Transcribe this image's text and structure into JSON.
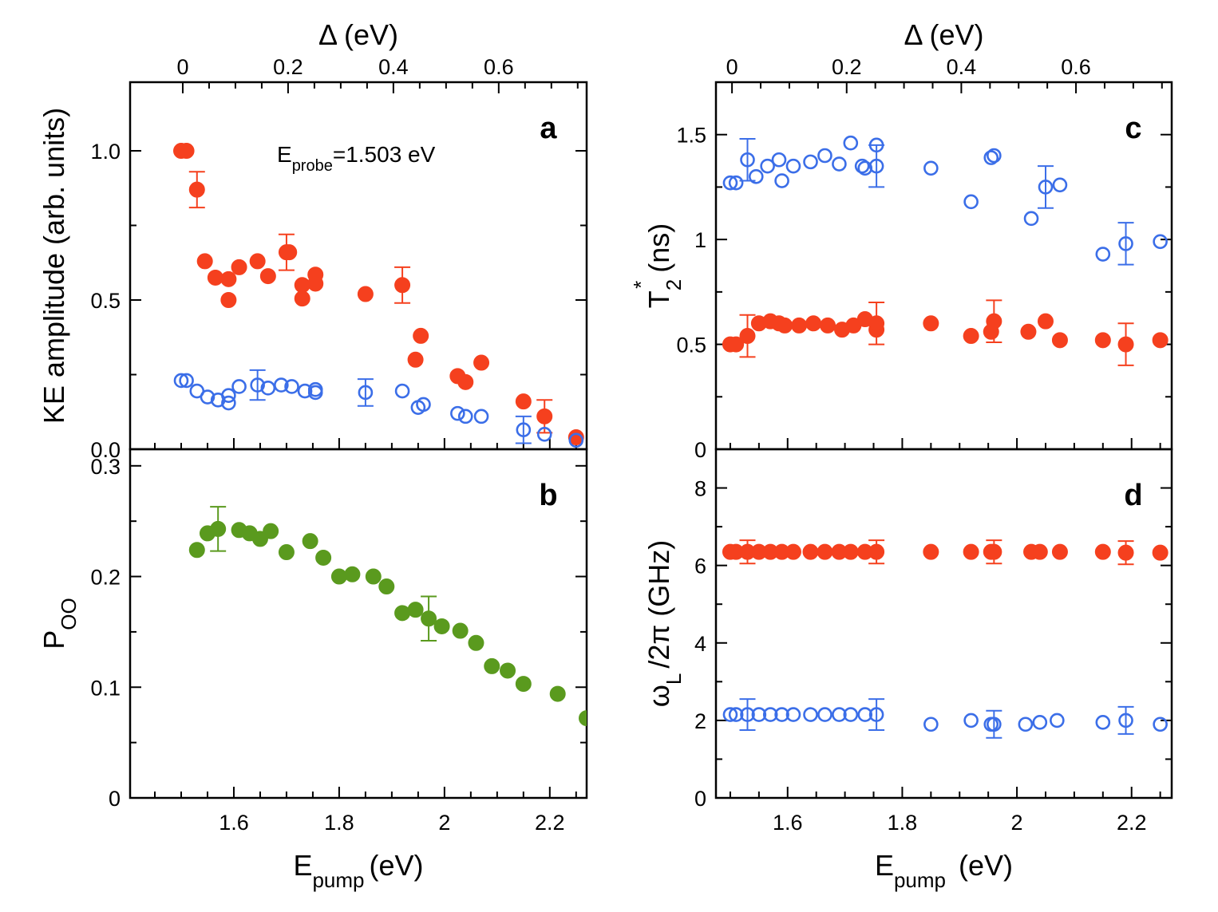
{
  "chart_data": [
    {
      "type": "scatter",
      "panel": "a",
      "title": "",
      "annotation": {
        "base": "E",
        "sub": "probe",
        "rest": "=1.503 eV"
      },
      "ylabel": "KE amplitude (arb. units)",
      "xlabel": "",
      "top_axis": {
        "symbol": "Δ",
        "unit": "(eV)",
        "ticks": [
          0,
          0.2,
          0.4,
          0.6
        ],
        "tick_labels": [
          "0",
          "0.2",
          "0.4",
          "0.6"
        ]
      },
      "xlim": [
        1.403,
        2.27
      ],
      "ylim": [
        0,
        1.23
      ],
      "yticks": [
        0,
        0.5,
        1.0
      ],
      "ytick_labels": [
        "0.0",
        "0.5",
        "1.0"
      ],
      "series": [
        {
          "name": "filled-red",
          "color": "#f5401e",
          "marker": "filled",
          "x": [
            1.5,
            1.51,
            1.53,
            1.545,
            1.565,
            1.59,
            1.59,
            1.61,
            1.645,
            1.665,
            1.7,
            1.705,
            1.73,
            1.73,
            1.755,
            1.755,
            1.85,
            1.92,
            1.945,
            1.955,
            2.025,
            2.04,
            2.07,
            2.15,
            2.19,
            2.25
          ],
          "y": [
            1.0,
            1.0,
            0.87,
            0.63,
            0.575,
            0.57,
            0.5,
            0.61,
            0.63,
            0.58,
            0.66,
            0.66,
            0.55,
            0.505,
            0.585,
            0.555,
            0.52,
            0.55,
            0.3,
            0.38,
            0.245,
            0.225,
            0.29,
            0.16,
            0.11,
            0.04
          ],
          "err": [
            0,
            0,
            0.06,
            0,
            0,
            0,
            0,
            0,
            0,
            0,
            0.06,
            0,
            0,
            0,
            0,
            0,
            0,
            0.06,
            0,
            0,
            0,
            0,
            0,
            0,
            0.055,
            0
          ]
        },
        {
          "name": "open-blue",
          "color": "#3b6ee8",
          "marker": "open",
          "x": [
            1.5,
            1.51,
            1.53,
            1.55,
            1.57,
            1.59,
            1.59,
            1.61,
            1.645,
            1.665,
            1.69,
            1.71,
            1.735,
            1.755,
            1.755,
            1.85,
            1.92,
            1.95,
            1.96,
            2.025,
            2.04,
            2.07,
            2.15,
            2.19,
            2.25
          ],
          "y": [
            0.23,
            0.23,
            0.195,
            0.175,
            0.165,
            0.18,
            0.155,
            0.21,
            0.215,
            0.205,
            0.215,
            0.21,
            0.195,
            0.2,
            0.19,
            0.19,
            0.195,
            0.14,
            0.15,
            0.12,
            0.11,
            0.11,
            0.065,
            0.05,
            0.03
          ],
          "err": [
            0,
            0,
            0,
            0,
            0,
            0,
            0,
            0,
            0.05,
            0,
            0,
            0,
            0,
            0,
            0,
            0.045,
            0,
            0,
            0,
            0,
            0,
            0,
            0.045,
            0,
            0
          ]
        }
      ]
    },
    {
      "type": "scatter",
      "panel": "b",
      "title": "",
      "ylabel": {
        "base": "P",
        "sub": "OO"
      },
      "xlabel": {
        "base": "E",
        "sub": "pump",
        "rest": "(eV)"
      },
      "xlim": [
        1.403,
        2.27
      ],
      "xticks": [
        1.6,
        1.8,
        2.0,
        2.2
      ],
      "xtick_labels": [
        "1.6",
        "1.8",
        "2",
        "2.2"
      ],
      "ylim": [
        0,
        0.315
      ],
      "yticks": [
        0,
        0.1,
        0.2,
        0.3
      ],
      "ytick_labels": [
        "0",
        "0.1",
        "0.2",
        "0.3"
      ],
      "series": [
        {
          "name": "filled-green",
          "color": "#5a9a1e",
          "marker": "filled",
          "x": [
            1.53,
            1.55,
            1.57,
            1.61,
            1.63,
            1.65,
            1.67,
            1.7,
            1.745,
            1.77,
            1.8,
            1.825,
            1.865,
            1.89,
            1.92,
            1.945,
            1.97,
            1.995,
            2.03,
            2.06,
            2.09,
            2.12,
            2.15,
            2.215,
            2.27
          ],
          "y": [
            0.224,
            0.239,
            0.243,
            0.242,
            0.239,
            0.234,
            0.241,
            0.222,
            0.232,
            0.217,
            0.2,
            0.202,
            0.2,
            0.191,
            0.167,
            0.17,
            0.162,
            0.155,
            0.151,
            0.14,
            0.119,
            0.115,
            0.103,
            0.094,
            0.072
          ],
          "err": [
            0,
            0,
            0.02,
            0,
            0,
            0,
            0,
            0,
            0,
            0,
            0,
            0,
            0,
            0,
            0,
            0,
            0.02,
            0,
            0,
            0,
            0,
            0,
            0,
            0,
            0
          ]
        }
      ]
    },
    {
      "type": "scatter",
      "panel": "c",
      "title": "",
      "ylabel": {
        "base": "T",
        "sub": "2",
        "sup": "*",
        "rest": " (ns)"
      },
      "xlabel": "",
      "top_axis": {
        "symbol": "Δ",
        "unit": "(eV)",
        "ticks": [
          0,
          0.2,
          0.4,
          0.6
        ],
        "tick_labels": [
          "0",
          "0.2",
          "0.4",
          "0.6"
        ]
      },
      "xlim": [
        1.475,
        2.27
      ],
      "ylim": [
        0,
        1.75
      ],
      "yticks": [
        0,
        0.5,
        1.0,
        1.5
      ],
      "ytick_labels": [
        "0",
        "0.5",
        "1",
        "1.5"
      ],
      "series": [
        {
          "name": "open-blue",
          "color": "#3b6ee8",
          "marker": "open",
          "x": [
            1.5,
            1.51,
            1.53,
            1.545,
            1.565,
            1.585,
            1.59,
            1.61,
            1.64,
            1.665,
            1.69,
            1.71,
            1.73,
            1.735,
            1.755,
            1.755,
            1.85,
            1.92,
            1.955,
            1.96,
            2.025,
            2.05,
            2.075,
            2.15,
            2.19,
            2.25
          ],
          "y": [
            1.27,
            1.27,
            1.38,
            1.3,
            1.35,
            1.38,
            1.28,
            1.35,
            1.37,
            1.4,
            1.36,
            1.46,
            1.35,
            1.34,
            1.35,
            1.45,
            1.34,
            1.18,
            1.39,
            1.4,
            1.1,
            1.25,
            1.26,
            0.93,
            0.98,
            0.99
          ],
          "err": [
            0,
            0,
            0.1,
            0,
            0,
            0,
            0,
            0,
            0,
            0,
            0,
            0,
            0,
            0,
            0.1,
            0,
            0,
            0,
            0,
            0,
            0,
            0.1,
            0,
            0,
            0.1,
            0
          ]
        },
        {
          "name": "filled-red",
          "color": "#f5401e",
          "marker": "filled",
          "x": [
            1.5,
            1.51,
            1.53,
            1.55,
            1.57,
            1.585,
            1.595,
            1.62,
            1.645,
            1.67,
            1.695,
            1.715,
            1.735,
            1.755,
            1.755,
            1.85,
            1.92,
            1.955,
            1.96,
            2.02,
            2.05,
            2.075,
            2.15,
            2.19,
            2.25
          ],
          "y": [
            0.5,
            0.5,
            0.54,
            0.6,
            0.61,
            0.6,
            0.59,
            0.59,
            0.6,
            0.59,
            0.57,
            0.59,
            0.62,
            0.57,
            0.6,
            0.6,
            0.54,
            0.56,
            0.61,
            0.56,
            0.61,
            0.52,
            0.52,
            0.5,
            0.52
          ],
          "err": [
            0,
            0,
            0.1,
            0,
            0,
            0,
            0,
            0,
            0,
            0,
            0,
            0,
            0,
            0,
            0.1,
            0,
            0,
            0,
            0.1,
            0,
            0,
            0,
            0,
            0.1,
            0
          ]
        }
      ]
    },
    {
      "type": "scatter",
      "panel": "d",
      "title": "",
      "ylabel": {
        "base": "ω",
        "sub": "L",
        "rest": "/2π (GHz)"
      },
      "xlabel": {
        "base": "E",
        "sub": "pump",
        "rest": "  (eV)"
      },
      "xlim": [
        1.475,
        2.27
      ],
      "xticks": [
        1.6,
        1.8,
        2.0,
        2.2
      ],
      "xtick_labels": [
        "1.6",
        "1.8",
        "2",
        "2.2"
      ],
      "ylim": [
        0,
        9.0
      ],
      "yticks": [
        0,
        2,
        4,
        6,
        8
      ],
      "ytick_labels": [
        "0",
        "2",
        "4",
        "6",
        "8"
      ],
      "series": [
        {
          "name": "filled-red",
          "color": "#f5401e",
          "marker": "filled",
          "x": [
            1.5,
            1.51,
            1.53,
            1.55,
            1.57,
            1.59,
            1.61,
            1.64,
            1.665,
            1.69,
            1.71,
            1.735,
            1.755,
            1.85,
            1.92,
            1.955,
            1.96,
            2.025,
            2.04,
            2.075,
            2.15,
            2.19,
            2.25
          ],
          "y": [
            6.35,
            6.35,
            6.35,
            6.35,
            6.35,
            6.35,
            6.35,
            6.35,
            6.35,
            6.35,
            6.35,
            6.35,
            6.35,
            6.35,
            6.35,
            6.35,
            6.35,
            6.35,
            6.35,
            6.35,
            6.35,
            6.33,
            6.33
          ],
          "err": [
            0,
            0,
            0.3,
            0,
            0,
            0,
            0,
            0,
            0,
            0,
            0,
            0,
            0.3,
            0,
            0,
            0,
            0.3,
            0,
            0,
            0,
            0,
            0.3,
            0
          ]
        },
        {
          "name": "open-blue",
          "color": "#3b6ee8",
          "marker": "open",
          "x": [
            1.5,
            1.51,
            1.53,
            1.55,
            1.57,
            1.59,
            1.61,
            1.64,
            1.665,
            1.69,
            1.71,
            1.735,
            1.755,
            1.85,
            1.92,
            1.955,
            1.96,
            2.015,
            2.04,
            2.07,
            2.15,
            2.19,
            2.25
          ],
          "y": [
            2.15,
            2.15,
            2.15,
            2.15,
            2.15,
            2.15,
            2.15,
            2.15,
            2.15,
            2.15,
            2.15,
            2.15,
            2.15,
            1.9,
            2.0,
            1.9,
            1.9,
            1.9,
            1.95,
            2.0,
            1.95,
            2.0,
            1.9
          ],
          "err": [
            0,
            0,
            0.4,
            0,
            0,
            0,
            0,
            0,
            0,
            0,
            0,
            0,
            0.4,
            0,
            0,
            0,
            0.35,
            0,
            0,
            0,
            0,
            0.35,
            0
          ]
        }
      ]
    }
  ]
}
